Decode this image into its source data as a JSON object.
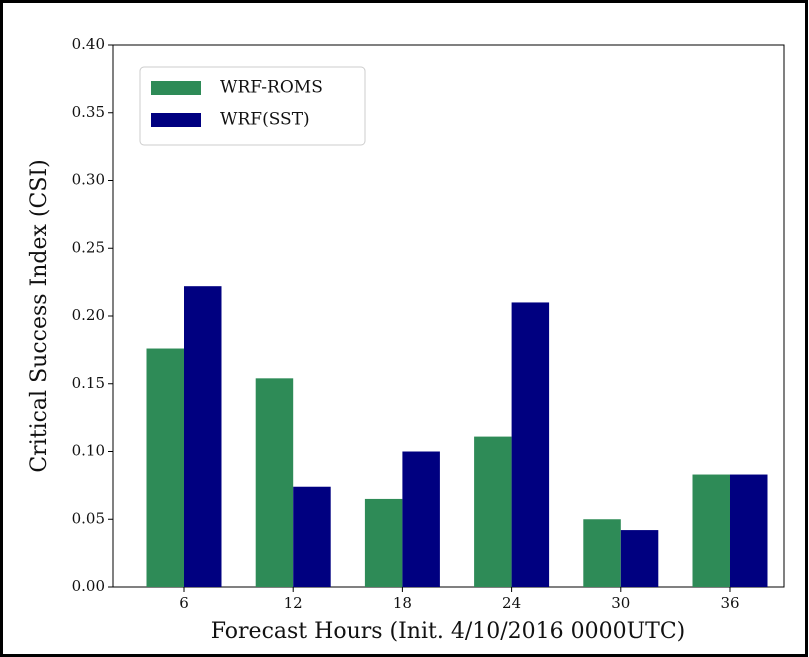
{
  "chart_data": {
    "type": "bar",
    "categories": [
      "6",
      "12",
      "18",
      "24",
      "30",
      "36"
    ],
    "series": [
      {
        "name": "WRF-ROMS",
        "color": "#2e8b57",
        "values": [
          0.176,
          0.154,
          0.065,
          0.111,
          0.05,
          0.083
        ]
      },
      {
        "name": "WRF(SST)",
        "color": "#000080",
        "values": [
          0.222,
          0.074,
          0.1,
          0.21,
          0.042,
          0.083
        ]
      }
    ],
    "x_label": "Forecast Hours (Init. 4/10/2016 0000UTC)",
    "y_label": "Critical Success Index (CSI)",
    "ylim": [
      0,
      0.4
    ],
    "yticks": [
      {
        "value": 0,
        "label": "0.00"
      },
      {
        "value": 0.05,
        "label": "0.05"
      },
      {
        "value": 0.1,
        "label": "0.10"
      },
      {
        "value": 0.15,
        "label": "0.15"
      },
      {
        "value": 0.2,
        "label": "0.20"
      },
      {
        "value": 0.25,
        "label": "0.25"
      },
      {
        "value": 0.3,
        "label": "0.30"
      },
      {
        "value": 0.35,
        "label": "0.35"
      },
      {
        "value": 0.4,
        "label": "0.40"
      }
    ],
    "legend": "upper left",
    "grid": false
  }
}
